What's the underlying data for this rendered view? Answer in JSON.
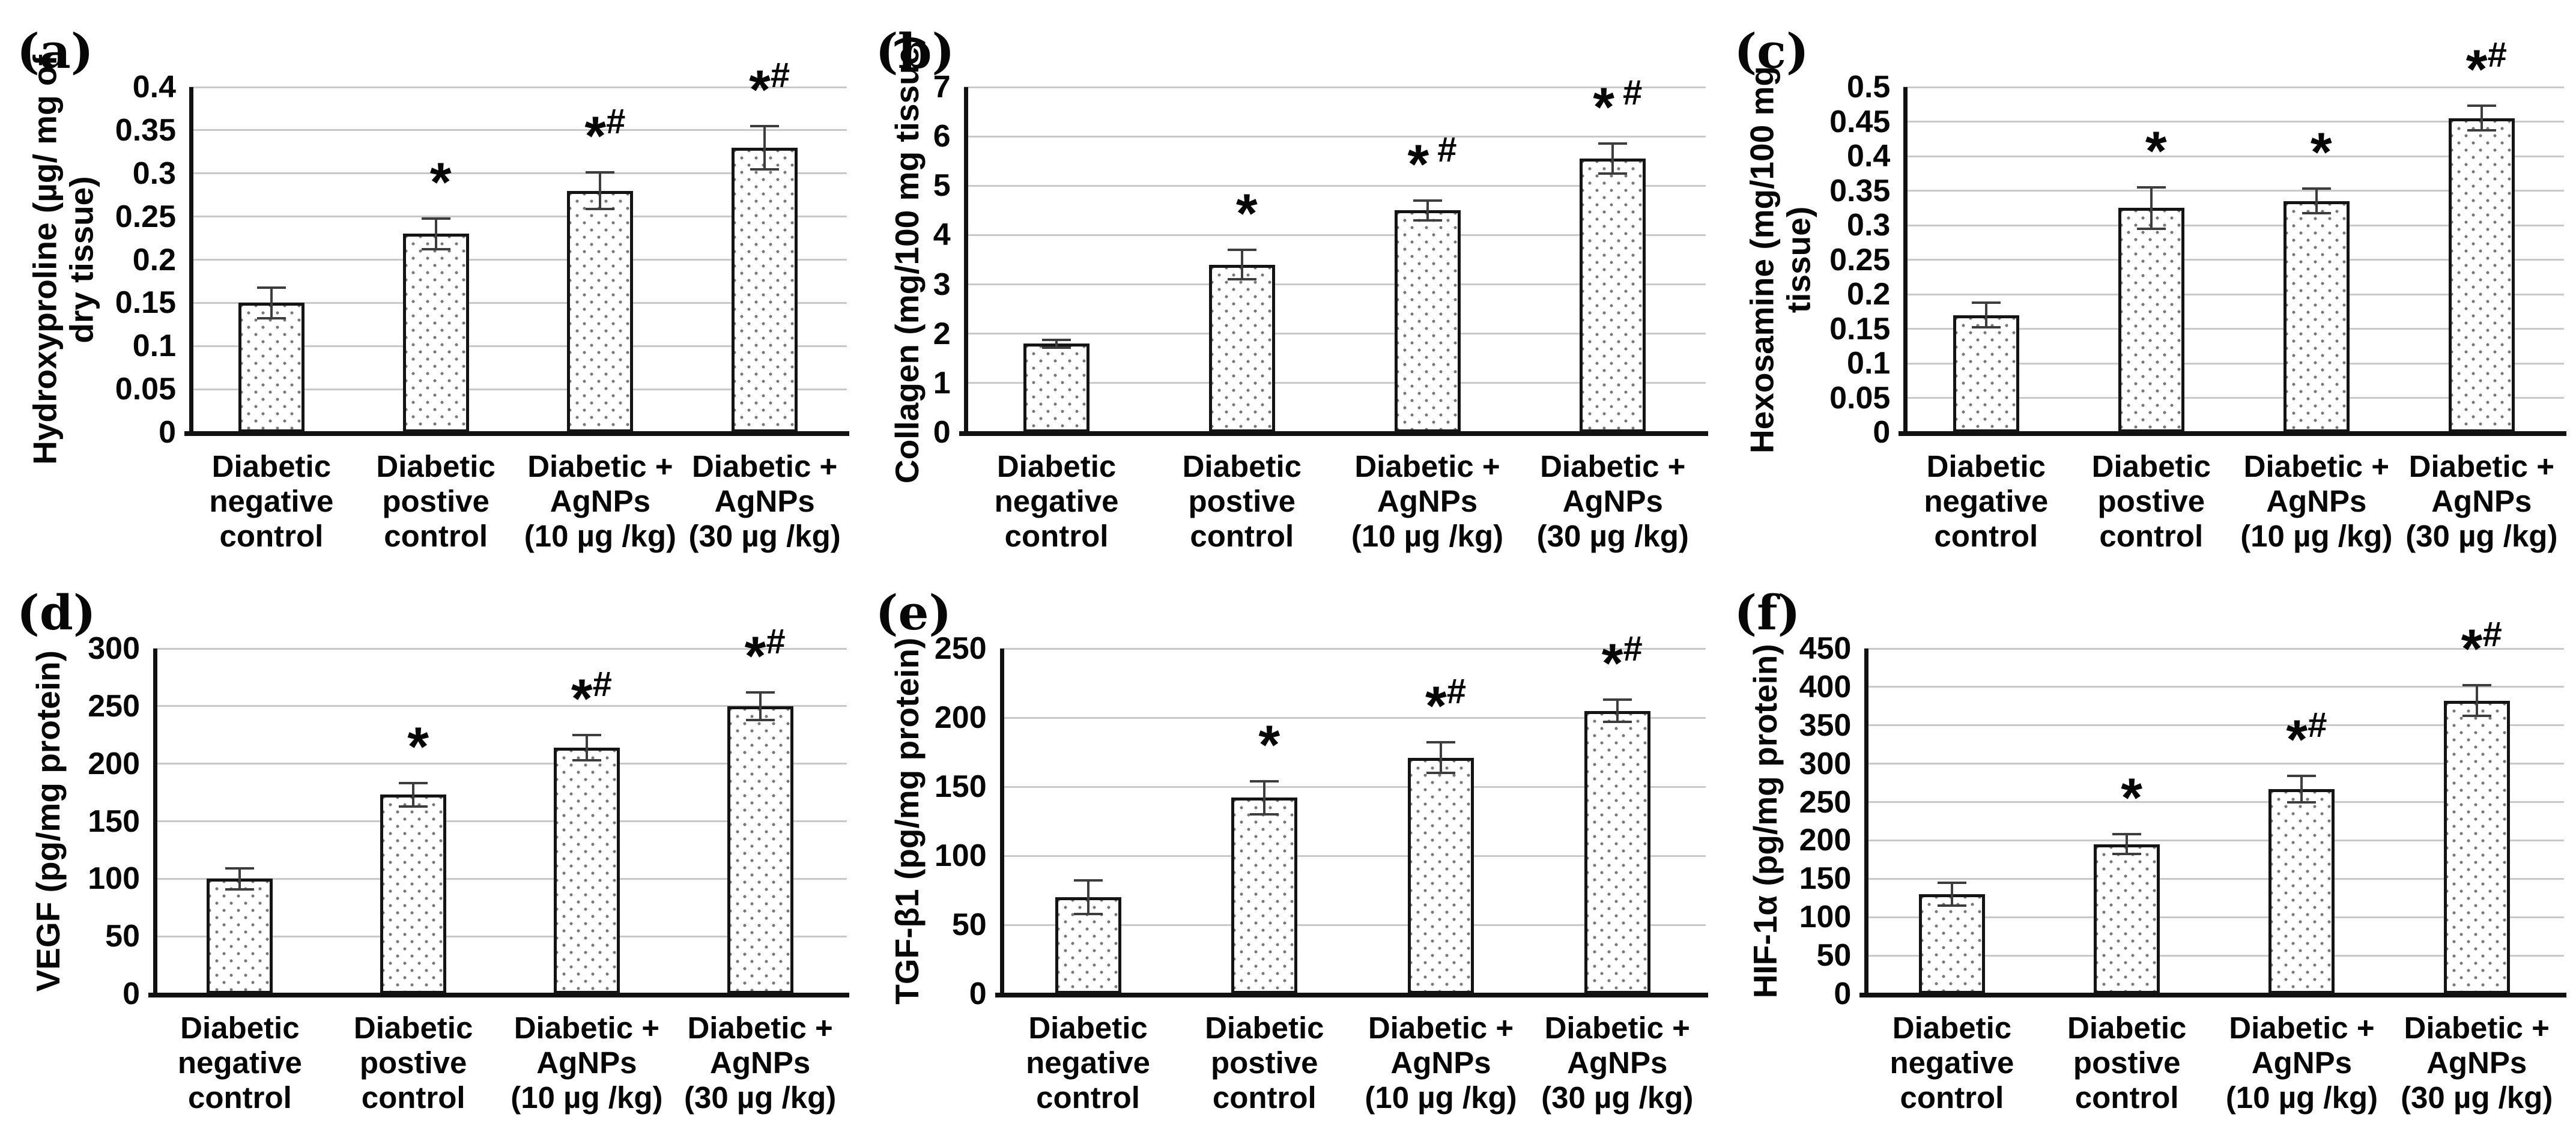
{
  "figure": {
    "background": "#ffffff",
    "text_color": "#0a0a0a",
    "gridline_color": "#c9c9c9",
    "bar_fill": "dotted-white-pattern",
    "bar_border_color": "#141414",
    "significance_symbols": {
      "star": "*",
      "hash": "#"
    }
  },
  "chart_data": [
    {
      "id": "a",
      "type": "bar",
      "letter": "(a)",
      "ylabel": "Hydroxyproline (µg/ mg of\ndry tissue)",
      "ylabel_lines": 2,
      "xlabel": "",
      "ylim": [
        0,
        0.4
      ],
      "yticks": [
        "0",
        "0.05",
        "0.1",
        "0.15",
        "0.2",
        "0.25",
        "0.3",
        "0.35",
        "0.4"
      ],
      "grid": true,
      "categories": [
        "Diabetic\nnegative\ncontrol",
        "Diabetic\npostive\ncontrol",
        "Diabetic +\nAgNPs\n(10 µg /kg)",
        "Diabetic +\nAgNPs\n(30 µg /kg)"
      ],
      "values": [
        0.15,
        0.23,
        0.28,
        0.33
      ],
      "errors": [
        0.018,
        0.018,
        0.021,
        0.025
      ],
      "annotations": [
        "",
        "*",
        "*#",
        "*#"
      ]
    },
    {
      "id": "b",
      "type": "bar",
      "letter": "(b)",
      "ylabel": "Collagen (mg/100 mg tissue)",
      "ylabel_lines": 1,
      "xlabel": "",
      "ylim": [
        0,
        7
      ],
      "yticks": [
        "0",
        "1",
        "2",
        "3",
        "4",
        "5",
        "6",
        "7"
      ],
      "grid": true,
      "categories": [
        "Diabetic\nnegative\ncontrol",
        "Diabetic\npostive\ncontrol",
        "Diabetic +\nAgNPs\n(10 µg /kg)",
        "Diabetic +\nAgNPs\n(30 µg /kg)"
      ],
      "values": [
        1.8,
        3.4,
        4.5,
        5.55
      ],
      "errors": [
        0.08,
        0.3,
        0.2,
        0.3
      ],
      "annotations": [
        "",
        "*",
        "* #",
        "* #"
      ]
    },
    {
      "id": "c",
      "type": "bar",
      "letter": "(c)",
      "ylabel": "Hexosamine (mg/100 mg\ntissue)",
      "ylabel_lines": 2,
      "xlabel": "",
      "ylim": [
        0,
        0.5
      ],
      "yticks": [
        "0",
        "0.05",
        "0.1",
        "0.15",
        "0.2",
        "0.25",
        "0.3",
        "0.35",
        "0.4",
        "0.45",
        "0.5"
      ],
      "grid": true,
      "categories": [
        "Diabetic\nnegative\ncontrol",
        "Diabetic\npostive\ncontrol",
        "Diabetic +\nAgNPs\n(10 µg /kg)",
        "Diabetic +\nAgNPs\n(30 µg /kg)"
      ],
      "values": [
        0.17,
        0.325,
        0.335,
        0.455
      ],
      "errors": [
        0.018,
        0.03,
        0.018,
        0.018
      ],
      "annotations": [
        "",
        "*",
        "*",
        "*#"
      ]
    },
    {
      "id": "d",
      "type": "bar",
      "letter": "(d)",
      "ylabel": "VEGF (pg/mg protein)",
      "ylabel_lines": 1,
      "xlabel": "",
      "ylim": [
        0,
        300
      ],
      "yticks": [
        "0",
        "50",
        "100",
        "150",
        "200",
        "250",
        "300"
      ],
      "grid": true,
      "categories": [
        "Diabetic\nnegative\ncontrol",
        "Diabetic\npostive\ncontrol",
        "Diabetic +\nAgNPs\n(10 µg /kg)",
        "Diabetic +\nAgNPs\n(30 µg /kg)"
      ],
      "values": [
        100,
        173,
        214,
        250
      ],
      "errors": [
        9,
        10,
        11,
        12
      ],
      "annotations": [
        "",
        "*",
        "*#",
        "*#"
      ]
    },
    {
      "id": "e",
      "type": "bar",
      "letter": "(e)",
      "ylabel": "TGF-β1 (pg/mg protein)",
      "ylabel_lines": 1,
      "xlabel": "",
      "ylim": [
        0,
        250
      ],
      "yticks": [
        "0",
        "50",
        "100",
        "150",
        "200",
        "250"
      ],
      "grid": true,
      "categories": [
        "Diabetic\nnegative\ncontrol",
        "Diabetic\npostive\ncontrol",
        "Diabetic +\nAgNPs\n(10 µg /kg)",
        "Diabetic +\nAgNPs\n(30 µg /kg)"
      ],
      "values": [
        70,
        142,
        171,
        205
      ],
      "errors": [
        12,
        12,
        11,
        8
      ],
      "annotations": [
        "",
        "*",
        "*#",
        "*#"
      ]
    },
    {
      "id": "f",
      "type": "bar",
      "letter": "(f)",
      "ylabel": "HIF-1α (pg/mg protein)",
      "ylabel_lines": 1,
      "xlabel": "",
      "ylim": [
        0,
        450
      ],
      "yticks": [
        "0",
        "50",
        "100",
        "150",
        "200",
        "250",
        "300",
        "350",
        "400",
        "450"
      ],
      "grid": true,
      "categories": [
        "Diabetic\nnegative\ncontrol",
        "Diabetic\npostive\ncontrol",
        "Diabetic +\nAgNPs\n(10 µg /kg)",
        "Diabetic +\nAgNPs\n(30 µg /kg)"
      ],
      "values": [
        130,
        195,
        267,
        382
      ],
      "errors": [
        15,
        13,
        17,
        20
      ],
      "annotations": [
        "",
        "*",
        "*#",
        "*#"
      ]
    }
  ]
}
